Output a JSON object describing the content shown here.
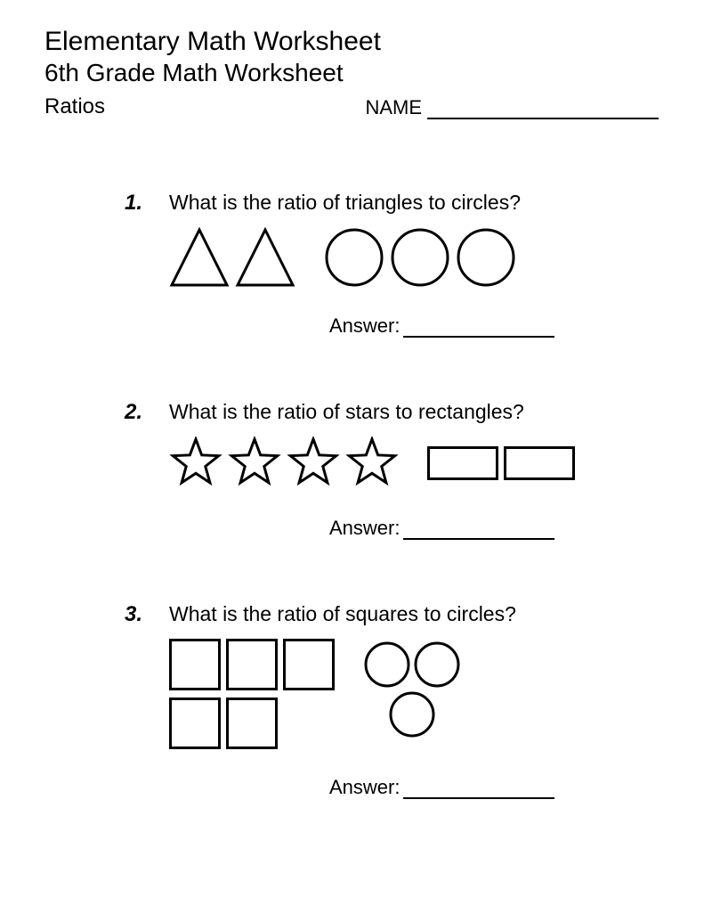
{
  "header": {
    "title1": "Elementary Math Worksheet",
    "title2": "6th Grade Math Worksheet",
    "topic": "Ratios",
    "name_label": "NAME"
  },
  "answer_label": "Answer:",
  "problems": [
    {
      "number": "1.",
      "question": "What is the ratio of triangles to circles?",
      "groups": [
        {
          "shape": "triangle",
          "count": 2,
          "size": 68,
          "stroke": "#000000",
          "stroke_width": 3
        },
        {
          "shape": "circle",
          "count": 3,
          "size": 68,
          "stroke": "#000000",
          "stroke_width": 3
        }
      ]
    },
    {
      "number": "2.",
      "question": "What is the ratio of stars to rectangles?",
      "groups": [
        {
          "shape": "star",
          "count": 4,
          "size": 60,
          "stroke": "#000000",
          "stroke_width": 3
        },
        {
          "shape": "rectangle",
          "count": 2,
          "w": 80,
          "h": 38,
          "stroke": "#000000",
          "stroke_width": 3
        }
      ]
    },
    {
      "number": "3.",
      "question": "What is the ratio of squares to circles?",
      "layout": "custom",
      "squares": {
        "shape": "square",
        "count": 5,
        "size": 58,
        "rows": [
          3,
          2
        ],
        "stroke": "#000000",
        "stroke_width": 3
      },
      "circles": {
        "shape": "circle",
        "count": 3,
        "size": 54,
        "arrangement": "triangle",
        "stroke": "#000000",
        "stroke_width": 3
      }
    }
  ],
  "colors": {
    "text": "#000000",
    "background": "#ffffff",
    "line": "#000000"
  }
}
